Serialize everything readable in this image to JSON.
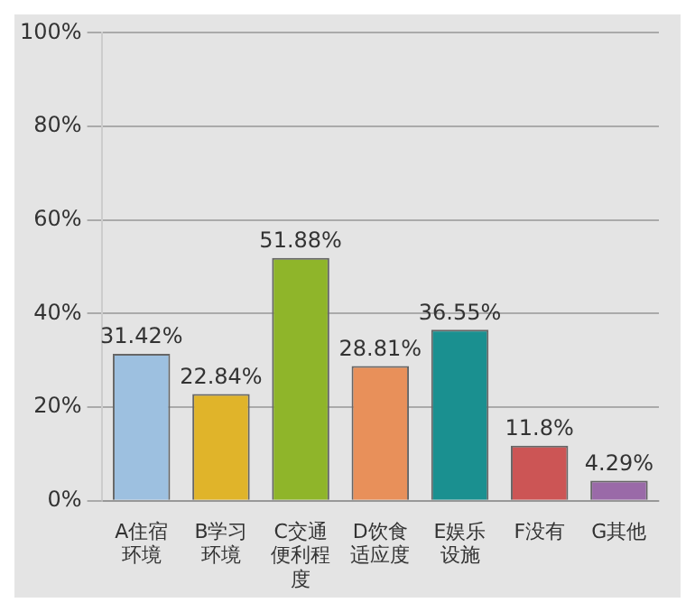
{
  "chart_data": {
    "type": "bar",
    "categories": [
      "A住宿环境",
      "B学习环境",
      "C交通便利程度",
      "D饮食适应度",
      "E娱乐设施",
      "F没有",
      "G其他"
    ],
    "values": [
      31.42,
      22.84,
      51.88,
      28.81,
      36.55,
      11.8,
      4.29
    ],
    "colors": [
      "#9dc0e0",
      "#e0b42a",
      "#8fb52a",
      "#e8905a",
      "#1a9090",
      "#cc5555",
      "#9a6aa8"
    ],
    "value_labels": [
      "31.42%",
      "22.84%",
      "51.88%",
      "28.81%",
      "36.55%",
      "11.8%",
      "4.29%"
    ],
    "ylim": [
      0,
      100
    ],
    "yticks": [
      {
        "value": 0,
        "label": "0%"
      },
      {
        "value": 20,
        "label": "20%"
      },
      {
        "value": 40,
        "label": "40%"
      },
      {
        "value": 60,
        "label": "60%"
      },
      {
        "value": 80,
        "label": "80%"
      },
      {
        "value": 100,
        "label": "100%"
      }
    ],
    "grid": "y",
    "legend": false
  }
}
